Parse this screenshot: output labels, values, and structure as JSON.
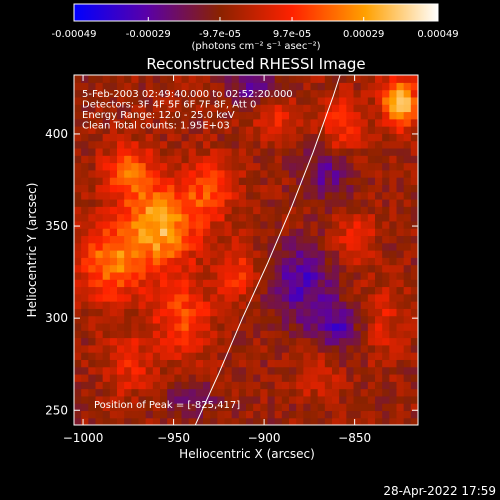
{
  "colorbar": {
    "ticks": [
      "-0.00049",
      "-0.00029",
      "-9.7e-05",
      "9.7e-05",
      "0.00029",
      "0.00049"
    ],
    "tick_values": [
      -0.00049,
      -0.00029,
      -9.7e-05,
      9.7e-05,
      0.00029,
      0.00049
    ],
    "units_label": "(photons cm⁻² s⁻¹ asec⁻²)",
    "colors": [
      "#0000ff",
      "#5a00a8",
      "#8a2200",
      "#ff2200",
      "#ffa000",
      "#ffffff"
    ]
  },
  "chart_data": {
    "type": "heatmap",
    "title": "Reconstructed RHESSI Image",
    "xlabel": "Heliocentric X (arcsec)",
    "ylabel": "Heliocentric Y (arcsec)",
    "xlim": [
      -1005,
      -815
    ],
    "ylim": [
      242,
      432
    ],
    "x_ticks": [
      -1000,
      -950,
      -900,
      -850
    ],
    "y_ticks": [
      250,
      300,
      350,
      400
    ],
    "x_tick_labels": [
      "−1000",
      "−950",
      "−900",
      "−850"
    ],
    "y_tick_labels": [
      "250",
      "300",
      "350",
      "400"
    ],
    "annotations": [
      "5-Feb-2003 02:49:40.000 to 02:52:20.000",
      "Detectors: 3F 4F 5F 6F 7F 8F, Att 0",
      "Energy Range: 12.0 - 25.0 keV",
      "Clean     Total counts: 1.95E+03"
    ],
    "peak_label": "Position of Peak = [-825,417]",
    "peak_position": [
      -825,
      417
    ],
    "limb_curve": [
      [
        -938,
        242
      ],
      [
        -925,
        270
      ],
      [
        -912,
        300
      ],
      [
        -898,
        330
      ],
      [
        -885,
        360
      ],
      [
        -873,
        390
      ],
      [
        -862,
        420
      ],
      [
        -858,
        432
      ]
    ],
    "intensity_blobs": [
      {
        "x": -958,
        "y": 350,
        "sx": 14,
        "sy": 16,
        "v": 0.0004
      },
      {
        "x": -985,
        "y": 330,
        "sx": 12,
        "sy": 14,
        "v": 0.0003
      },
      {
        "x": -975,
        "y": 380,
        "sx": 10,
        "sy": 10,
        "v": 0.00025
      },
      {
        "x": -945,
        "y": 300,
        "sx": 12,
        "sy": 14,
        "v": 0.00022
      },
      {
        "x": -930,
        "y": 370,
        "sx": 10,
        "sy": 12,
        "v": 0.00022
      },
      {
        "x": -975,
        "y": 275,
        "sx": 10,
        "sy": 12,
        "v": 0.00015
      },
      {
        "x": -915,
        "y": 325,
        "sx": 8,
        "sy": 10,
        "v": 0.00018
      },
      {
        "x": -825,
        "y": 417,
        "sx": 7,
        "sy": 10,
        "v": 0.00046
      },
      {
        "x": -858,
        "y": 405,
        "sx": 8,
        "sy": 12,
        "v": 0.0002
      },
      {
        "x": -850,
        "y": 345,
        "sx": 8,
        "sy": 10,
        "v": 0.00014
      },
      {
        "x": -835,
        "y": 300,
        "sx": 10,
        "sy": 14,
        "v": 0.00012
      },
      {
        "x": -870,
        "y": 270,
        "sx": 8,
        "sy": 10,
        "v": 0.00012
      },
      {
        "x": -895,
        "y": 410,
        "sx": 9,
        "sy": 8,
        "v": 0.00016
      },
      {
        "x": -880,
        "y": 320,
        "sx": 12,
        "sy": 14,
        "v": -0.00024
      },
      {
        "x": -865,
        "y": 380,
        "sx": 10,
        "sy": 10,
        "v": -0.00018
      },
      {
        "x": -905,
        "y": 425,
        "sx": 10,
        "sy": 8,
        "v": -0.0002
      },
      {
        "x": -860,
        "y": 295,
        "sx": 10,
        "sy": 10,
        "v": -0.00022
      },
      {
        "x": -940,
        "y": 255,
        "sx": 10,
        "sy": 8,
        "v": -0.00012
      }
    ]
  },
  "footer": {
    "timestamp": "28-Apr-2022 17:59"
  }
}
